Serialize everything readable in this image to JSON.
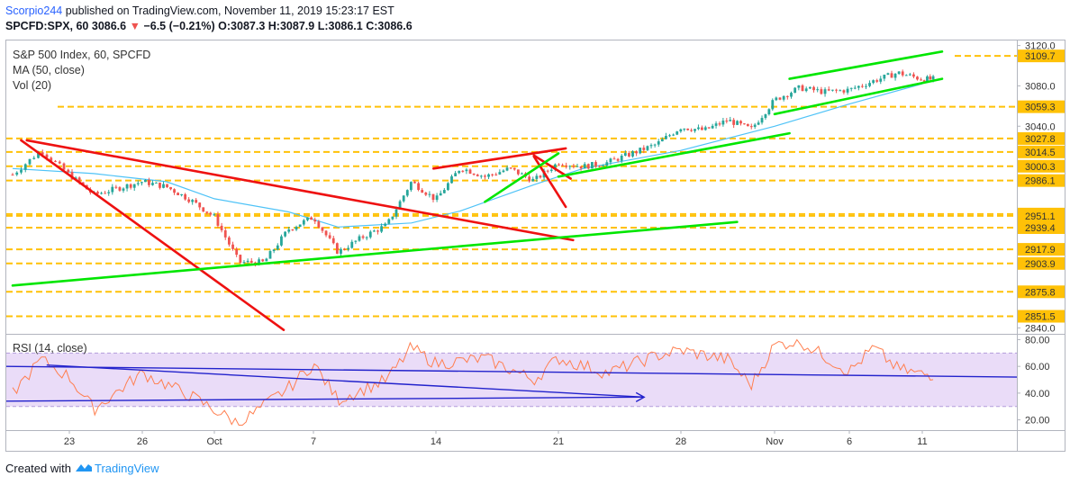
{
  "header": {
    "author": "Scorpio244",
    "published": "published on TradingView.com, November 11, 2019 15:23:17 EST",
    "symbol": "SPCFD:SPX, 60",
    "last": "3086.6",
    "arrow": "▼",
    "change": "−6.5 (−0.21%)",
    "ohlc": [
      {
        "label": "O:",
        "value": "3087.3"
      },
      {
        "label": "H:",
        "value": "3087.9"
      },
      {
        "label": "L:",
        "value": "3086.1"
      },
      {
        "label": "C:",
        "value": "3086.6"
      }
    ]
  },
  "legend": {
    "title": "S&P 500 Index, 60, SPCFD",
    "ma": "MA (50, close)",
    "vol": "Vol (20)",
    "rsi": "RSI (14, close)"
  },
  "footer": {
    "created_with": "Created with",
    "brand": "TradingView"
  },
  "colors": {
    "up_candle": "#26a69a",
    "down_candle": "#ef5350",
    "ma": "#4fc3f7",
    "level_line": "#ffc107",
    "green_trend": "#00e600",
    "red_trend": "#ee1111",
    "rsi_line": "#ff7f50",
    "rsi_band": "#eadcf8",
    "blue_trend": "#2222cc"
  },
  "chart_data": [
    {
      "type": "candlestick",
      "title": "S&P 500 Index, 60, SPCFD",
      "x_ticks": [
        "23",
        "26",
        "Oct",
        "7",
        "14",
        "21",
        "28",
        "Nov",
        "6",
        "11"
      ],
      "price_axis": {
        "ylim": [
          2835,
          3125
        ],
        "grid_labels": [
          "3120.0",
          "3080.0",
          "3040.0",
          "2840.0"
        ],
        "level_labels": [
          "3109.7",
          "3059.3",
          "3027.8",
          "3014.5",
          "3000.3",
          "2986.1",
          "2952.9",
          "2951.1",
          "2939.4",
          "2917.9",
          "2903.9",
          "2875.8",
          "2851.5"
        ]
      },
      "horizontal_levels": [
        3109.7,
        3059.3,
        3027.8,
        3014.5,
        3000.3,
        2986.1,
        2952.9,
        2951.1,
        2939.4,
        2917.9,
        2903.9,
        2875.8,
        2851.5
      ],
      "price_path_approx": [
        {
          "x": "19-Sep",
          "y": 2992
        },
        {
          "x": "20-Sep",
          "y": 3016
        },
        {
          "x": "23-Sep",
          "y": 2992
        },
        {
          "x": "24-Sep",
          "y": 2972
        },
        {
          "x": "26-Sep",
          "y": 2985
        },
        {
          "x": "27-Sep",
          "y": 2980
        },
        {
          "x": "30-Sep",
          "y": 2967
        },
        {
          "x": "1-Oct",
          "y": 2950
        },
        {
          "x": "2-Oct",
          "y": 2905
        },
        {
          "x": "3-Oct",
          "y": 2905
        },
        {
          "x": "4-Oct",
          "y": 2938
        },
        {
          "x": "7-Oct",
          "y": 2950
        },
        {
          "x": "8-Oct",
          "y": 2915
        },
        {
          "x": "9-Oct",
          "y": 2930
        },
        {
          "x": "10-Oct",
          "y": 2942
        },
        {
          "x": "11-Oct",
          "y": 2985
        },
        {
          "x": "14-Oct",
          "y": 2967
        },
        {
          "x": "15-Oct",
          "y": 2999
        },
        {
          "x": "16-Oct",
          "y": 2990
        },
        {
          "x": "17-Oct",
          "y": 2998
        },
        {
          "x": "18-Oct",
          "y": 2986
        },
        {
          "x": "21-Oct",
          "y": 3004
        },
        {
          "x": "22-Oct",
          "y": 3000
        },
        {
          "x": "23-Oct",
          "y": 3004
        },
        {
          "x": "25-Oct",
          "y": 3022
        },
        {
          "x": "28-Oct",
          "y": 3039
        },
        {
          "x": "29-Oct",
          "y": 3036
        },
        {
          "x": "30-Oct",
          "y": 3046
        },
        {
          "x": "31-Oct",
          "y": 3037
        },
        {
          "x": "1-Nov",
          "y": 3066
        },
        {
          "x": "4-Nov",
          "y": 3078
        },
        {
          "x": "5-Nov",
          "y": 3074
        },
        {
          "x": "6-Nov",
          "y": 3076
        },
        {
          "x": "7-Nov",
          "y": 3085
        },
        {
          "x": "8-Nov",
          "y": 3093
        },
        {
          "x": "11-Nov",
          "y": 3086.6
        }
      ],
      "ma_path_approx": [
        {
          "x": "19-Sep",
          "y": 2998
        },
        {
          "x": "24-Sep",
          "y": 2993
        },
        {
          "x": "27-Sep",
          "y": 2985
        },
        {
          "x": "1-Oct",
          "y": 2968
        },
        {
          "x": "4-Oct",
          "y": 2955
        },
        {
          "x": "8-Oct",
          "y": 2940
        },
        {
          "x": "11-Oct",
          "y": 2944
        },
        {
          "x": "15-Oct",
          "y": 2956
        },
        {
          "x": "18-Oct",
          "y": 2982
        },
        {
          "x": "22-Oct",
          "y": 2998
        },
        {
          "x": "28-Oct",
          "y": 3016
        },
        {
          "x": "1-Nov",
          "y": 3040
        },
        {
          "x": "6-Nov",
          "y": 3062
        },
        {
          "x": "11-Nov",
          "y": 3082
        }
      ]
    },
    {
      "type": "line",
      "title": "RSI (14, close)",
      "y_ticks": [
        "80.00",
        "60.00",
        "40.00",
        "20.00"
      ],
      "ylim": [
        13,
        83
      ],
      "band": [
        30,
        70
      ],
      "series": [
        {
          "values_approx": [
            {
              "x": "19-Sep",
              "y": 40
            },
            {
              "x": "20-Sep",
              "y": 65
            },
            {
              "x": "23-Sep",
              "y": 52
            },
            {
              "x": "24-Sep",
              "y": 28
            },
            {
              "x": "26-Sep",
              "y": 55
            },
            {
              "x": "30-Sep",
              "y": 38
            },
            {
              "x": "2-Oct",
              "y": 17
            },
            {
              "x": "4-Oct",
              "y": 44
            },
            {
              "x": "7-Oct",
              "y": 62
            },
            {
              "x": "8-Oct",
              "y": 35
            },
            {
              "x": "10-Oct",
              "y": 50
            },
            {
              "x": "11-Oct",
              "y": 74
            },
            {
              "x": "14-Oct",
              "y": 62
            },
            {
              "x": "16-Oct",
              "y": 66
            },
            {
              "x": "18-Oct",
              "y": 50
            },
            {
              "x": "21-Oct",
              "y": 66
            },
            {
              "x": "23-Oct",
              "y": 55
            },
            {
              "x": "25-Oct",
              "y": 68
            },
            {
              "x": "28-Oct",
              "y": 72
            },
            {
              "x": "30-Oct",
              "y": 65
            },
            {
              "x": "31-Oct",
              "y": 46
            },
            {
              "x": "1-Nov",
              "y": 76
            },
            {
              "x": "4-Nov",
              "y": 79
            },
            {
              "x": "6-Nov",
              "y": 56
            },
            {
              "x": "7-Nov",
              "y": 74
            },
            {
              "x": "8-Nov",
              "y": 58
            },
            {
              "x": "11-Nov",
              "y": 54
            }
          ]
        }
      ]
    }
  ]
}
